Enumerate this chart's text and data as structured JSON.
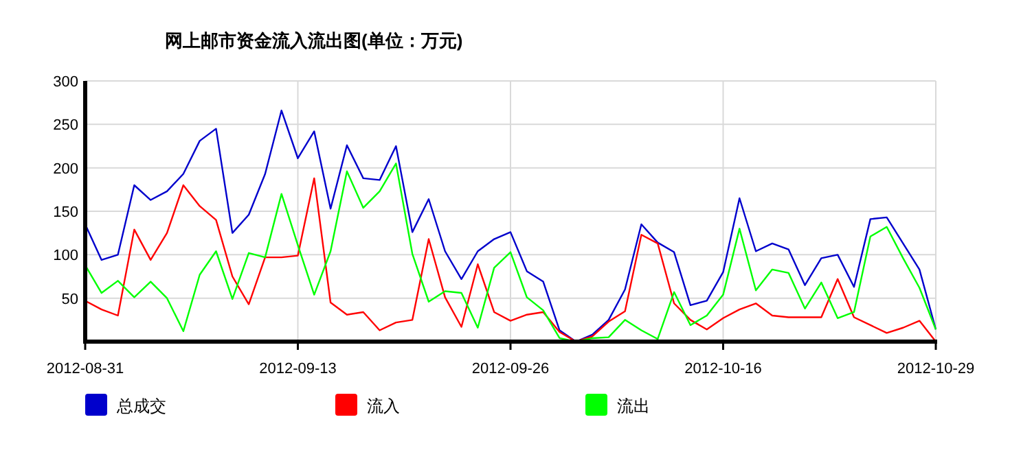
{
  "chart_data": {
    "type": "line",
    "title": "网上邮市资金流入流出图(单位：万元)",
    "categories": [
      "2012-08-31",
      null,
      null,
      null,
      null,
      null,
      null,
      null,
      null,
      null,
      null,
      null,
      null,
      "2012-09-13",
      null,
      null,
      null,
      null,
      null,
      null,
      null,
      null,
      null,
      null,
      null,
      null,
      "2012-09-26",
      null,
      null,
      null,
      null,
      null,
      null,
      null,
      null,
      null,
      null,
      null,
      null,
      "2012-10-16",
      null,
      null,
      null,
      null,
      null,
      null,
      null,
      null,
      null,
      null,
      null,
      null,
      "2012-10-29"
    ],
    "series": [
      {
        "name": "总成交",
        "color": "#0000cc",
        "values": [
          135,
          94,
          100,
          180,
          163,
          173,
          193,
          231,
          245,
          125,
          146,
          193,
          266,
          211,
          242,
          153,
          226,
          188,
          186,
          225,
          126,
          164,
          104,
          72,
          104,
          118,
          126,
          81,
          69,
          13,
          0,
          8,
          25,
          60,
          135,
          114,
          103,
          42,
          47,
          80,
          165,
          104,
          113,
          106,
          65,
          96,
          100,
          63,
          141,
          143,
          113,
          83,
          14
        ]
      },
      {
        "name": "流入",
        "color": "#ff0000",
        "values": [
          47,
          37,
          30,
          129,
          94,
          125,
          180,
          156,
          140,
          75,
          43,
          97,
          97,
          99,
          188,
          45,
          31,
          34,
          13,
          22,
          25,
          118,
          51,
          17,
          89,
          34,
          24,
          31,
          34,
          11,
          0,
          6,
          23,
          35,
          123,
          113,
          44,
          25,
          14,
          27,
          37,
          44,
          30,
          28,
          28,
          28,
          72,
          28,
          19,
          10,
          16,
          24,
          0
        ]
      },
      {
        "name": "流出",
        "color": "#00ff00",
        "values": [
          88,
          56,
          70,
          51,
          69,
          50,
          12,
          77,
          104,
          49,
          102,
          97,
          170,
          111,
          54,
          104,
          196,
          154,
          173,
          205,
          101,
          46,
          58,
          56,
          16,
          85,
          103,
          51,
          36,
          4,
          0,
          4,
          5,
          25,
          13,
          3,
          57,
          19,
          30,
          54,
          130,
          59,
          83,
          79,
          38,
          68,
          27,
          34,
          121,
          132,
          96,
          62,
          14
        ]
      }
    ],
    "ylim": [
      0,
      300
    ],
    "yticks": [
      50,
      100,
      150,
      200,
      250,
      300
    ],
    "grid": true,
    "legend": "bottom left",
    "marker": "none",
    "line_style": "solid"
  }
}
